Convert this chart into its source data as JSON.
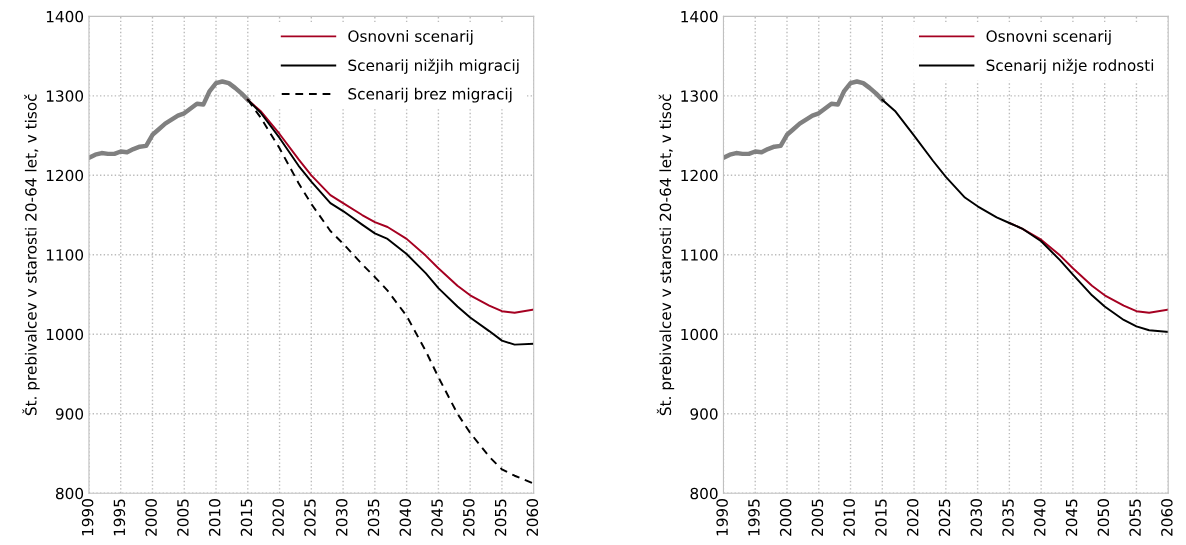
{
  "chart_data": [
    {
      "type": "line",
      "ylabel": "Št. prebivalcev v starosti 20-64 let, v tisoč",
      "xlim": [
        1990,
        2060
      ],
      "xticks": [
        1990,
        1995,
        2000,
        2005,
        2010,
        2015,
        2020,
        2025,
        2030,
        2035,
        2040,
        2045,
        2050,
        2055,
        2060
      ],
      "ylim": [
        800,
        1400
      ],
      "yticks": [
        800,
        900,
        1000,
        1100,
        1200,
        1300,
        1400
      ],
      "grid": true,
      "legend": "top right",
      "series": [
        {
          "color": "#808080",
          "x": [
            1990,
            1991,
            1992,
            1993,
            1994,
            1995,
            1996,
            1997,
            1998,
            1999,
            2000,
            2001,
            2002,
            2003,
            2004,
            2005,
            2006,
            2007,
            2008,
            2009,
            2010,
            2011,
            2012,
            2013,
            2014,
            2015
          ],
          "values": [
            1222,
            1226,
            1228,
            1227,
            1227,
            1230,
            1229,
            1233,
            1236,
            1237,
            1251,
            1258,
            1265,
            1270,
            1275,
            1278,
            1284,
            1290,
            1289,
            1306,
            1316,
            1318,
            1316,
            1310,
            1303,
            1295
          ]
        },
        {
          "name": "Osnovni scenarij",
          "color": "#a50021",
          "x": [
            2015,
            2017,
            2020,
            2023,
            2025,
            2028,
            2030,
            2033,
            2035,
            2037,
            2040,
            2043,
            2045,
            2048,
            2050,
            2053,
            2055,
            2057,
            2060
          ],
          "values": [
            1295,
            1281,
            1252,
            1220,
            1200,
            1175,
            1165,
            1150,
            1141,
            1135,
            1120,
            1099,
            1083,
            1061,
            1049,
            1036,
            1029,
            1027,
            1031
          ]
        },
        {
          "name": "Scenarij nižjih migracij",
          "color": "#000000",
          "x": [
            2015,
            2017,
            2020,
            2023,
            2025,
            2028,
            2030,
            2033,
            2035,
            2037,
            2040,
            2043,
            2045,
            2048,
            2050,
            2053,
            2055,
            2057,
            2060
          ],
          "values": [
            1295,
            1279,
            1247,
            1212,
            1192,
            1165,
            1155,
            1138,
            1127,
            1120,
            1101,
            1077,
            1058,
            1035,
            1021,
            1004,
            992,
            987,
            988
          ]
        },
        {
          "name": "Scenarij brez migracij",
          "color": "#000000",
          "line_style": "dashed",
          "x": [
            2015,
            2017,
            2020,
            2023,
            2025,
            2028,
            2030,
            2033,
            2035,
            2037,
            2040,
            2043,
            2045,
            2048,
            2050,
            2053,
            2055,
            2057,
            2060
          ],
          "values": [
            1295,
            1273,
            1234,
            1190,
            1164,
            1130,
            1114,
            1088,
            1072,
            1055,
            1023,
            979,
            946,
            900,
            876,
            846,
            830,
            822,
            812
          ]
        }
      ]
    },
    {
      "type": "line",
      "ylabel": "Št. prebivalcev v starosti 20-64 let, v tisoč",
      "xlim": [
        1990,
        2060
      ],
      "xticks": [
        1990,
        1995,
        2000,
        2005,
        2010,
        2015,
        2020,
        2025,
        2030,
        2035,
        2040,
        2045,
        2050,
        2055,
        2060
      ],
      "ylim": [
        800,
        1400
      ],
      "yticks": [
        800,
        900,
        1000,
        1100,
        1200,
        1300,
        1400
      ],
      "grid": true,
      "legend": "top right",
      "series": [
        {
          "color": "#808080",
          "x": [
            1990,
            1991,
            1992,
            1993,
            1994,
            1995,
            1996,
            1997,
            1998,
            1999,
            2000,
            2001,
            2002,
            2003,
            2004,
            2005,
            2006,
            2007,
            2008,
            2009,
            2010,
            2011,
            2012,
            2013,
            2014,
            2015
          ],
          "values": [
            1222,
            1226,
            1228,
            1227,
            1227,
            1230,
            1229,
            1233,
            1236,
            1237,
            1251,
            1258,
            1265,
            1270,
            1275,
            1278,
            1284,
            1290,
            1289,
            1306,
            1316,
            1318,
            1316,
            1310,
            1303,
            1295
          ]
        },
        {
          "name": "Osnovni scenarij",
          "color": "#a50021",
          "x": [
            2035,
            2037,
            2040,
            2043,
            2045,
            2048,
            2050,
            2053,
            2055,
            2057,
            2060
          ],
          "values": [
            1140,
            1133,
            1119,
            1099,
            1083,
            1061,
            1049,
            1036,
            1029,
            1027,
            1031
          ]
        },
        {
          "name": "Scenarij nižje rodnosti",
          "color": "#000000",
          "x": [
            2015,
            2017,
            2020,
            2023,
            2025,
            2028,
            2030,
            2033,
            2035,
            2037,
            2040,
            2043,
            2045,
            2048,
            2050,
            2053,
            2055,
            2057,
            2060
          ],
          "values": [
            1295,
            1281,
            1250,
            1218,
            1198,
            1172,
            1161,
            1147,
            1140,
            1133,
            1117,
            1093,
            1075,
            1049,
            1035,
            1018,
            1010,
            1005,
            1003
          ]
        }
      ]
    }
  ]
}
